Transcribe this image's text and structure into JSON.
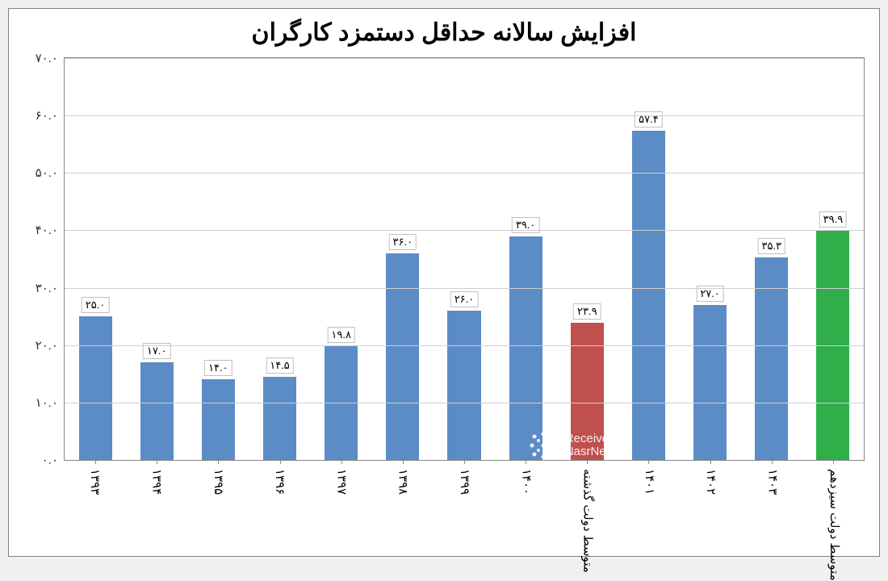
{
  "chart": {
    "type": "bar",
    "title": "افزایش سالانه حداقل دستمزد کارگران",
    "title_fontsize": 30,
    "background_color": "#ffffff",
    "grid_color": "#cfcfcf",
    "border_color": "#808080",
    "ylim": [
      0,
      70
    ],
    "ytick_step": 10,
    "ytick_labels": [
      "۰.۰",
      "۱۰.۰",
      "۲۰.۰",
      "۳۰.۰",
      "۴۰.۰",
      "۵۰.۰",
      "۶۰.۰",
      "۷۰.۰"
    ],
    "label_fontsize": 15,
    "categories": [
      "۱۳۹۳",
      "۱۳۹۴",
      "۱۳۹۵",
      "۱۳۹۶",
      "۱۳۹۷",
      "۱۳۹۸",
      "۱۳۹۹",
      "۱۴۰۰",
      "متوسط دولت گذشته",
      "۱۴۰۱",
      "۱۴۰۲",
      "۱۴۰۳",
      "متوسط دولت سیزدهم"
    ],
    "values": [
      25.0,
      17.0,
      14.0,
      14.5,
      19.8,
      36.0,
      26.0,
      39.0,
      23.9,
      57.4,
      27.0,
      35.3,
      39.9
    ],
    "value_labels": [
      "۲۵.۰",
      "۱۷.۰",
      "۱۴.۰",
      "۱۴.۵",
      "۱۹.۸",
      "۳۶.۰",
      "۲۶.۰",
      "۳۹.۰",
      "۲۳.۹",
      "۵۷.۴",
      "۲۷.۰",
      "۳۵.۳",
      "۳۹.۹"
    ],
    "bar_colors": [
      "#5b8cc5",
      "#5b8cc5",
      "#5b8cc5",
      "#5b8cc5",
      "#5b8cc5",
      "#5b8cc5",
      "#5b8cc5",
      "#5b8cc5",
      "#c0504d",
      "#5b8cc5",
      "#5b8cc5",
      "#5b8cc5",
      "#2fae4a"
    ],
    "bar_width": 0.54
  },
  "watermark": {
    "line1": "Receive",
    "line2": "NasrNews"
  }
}
